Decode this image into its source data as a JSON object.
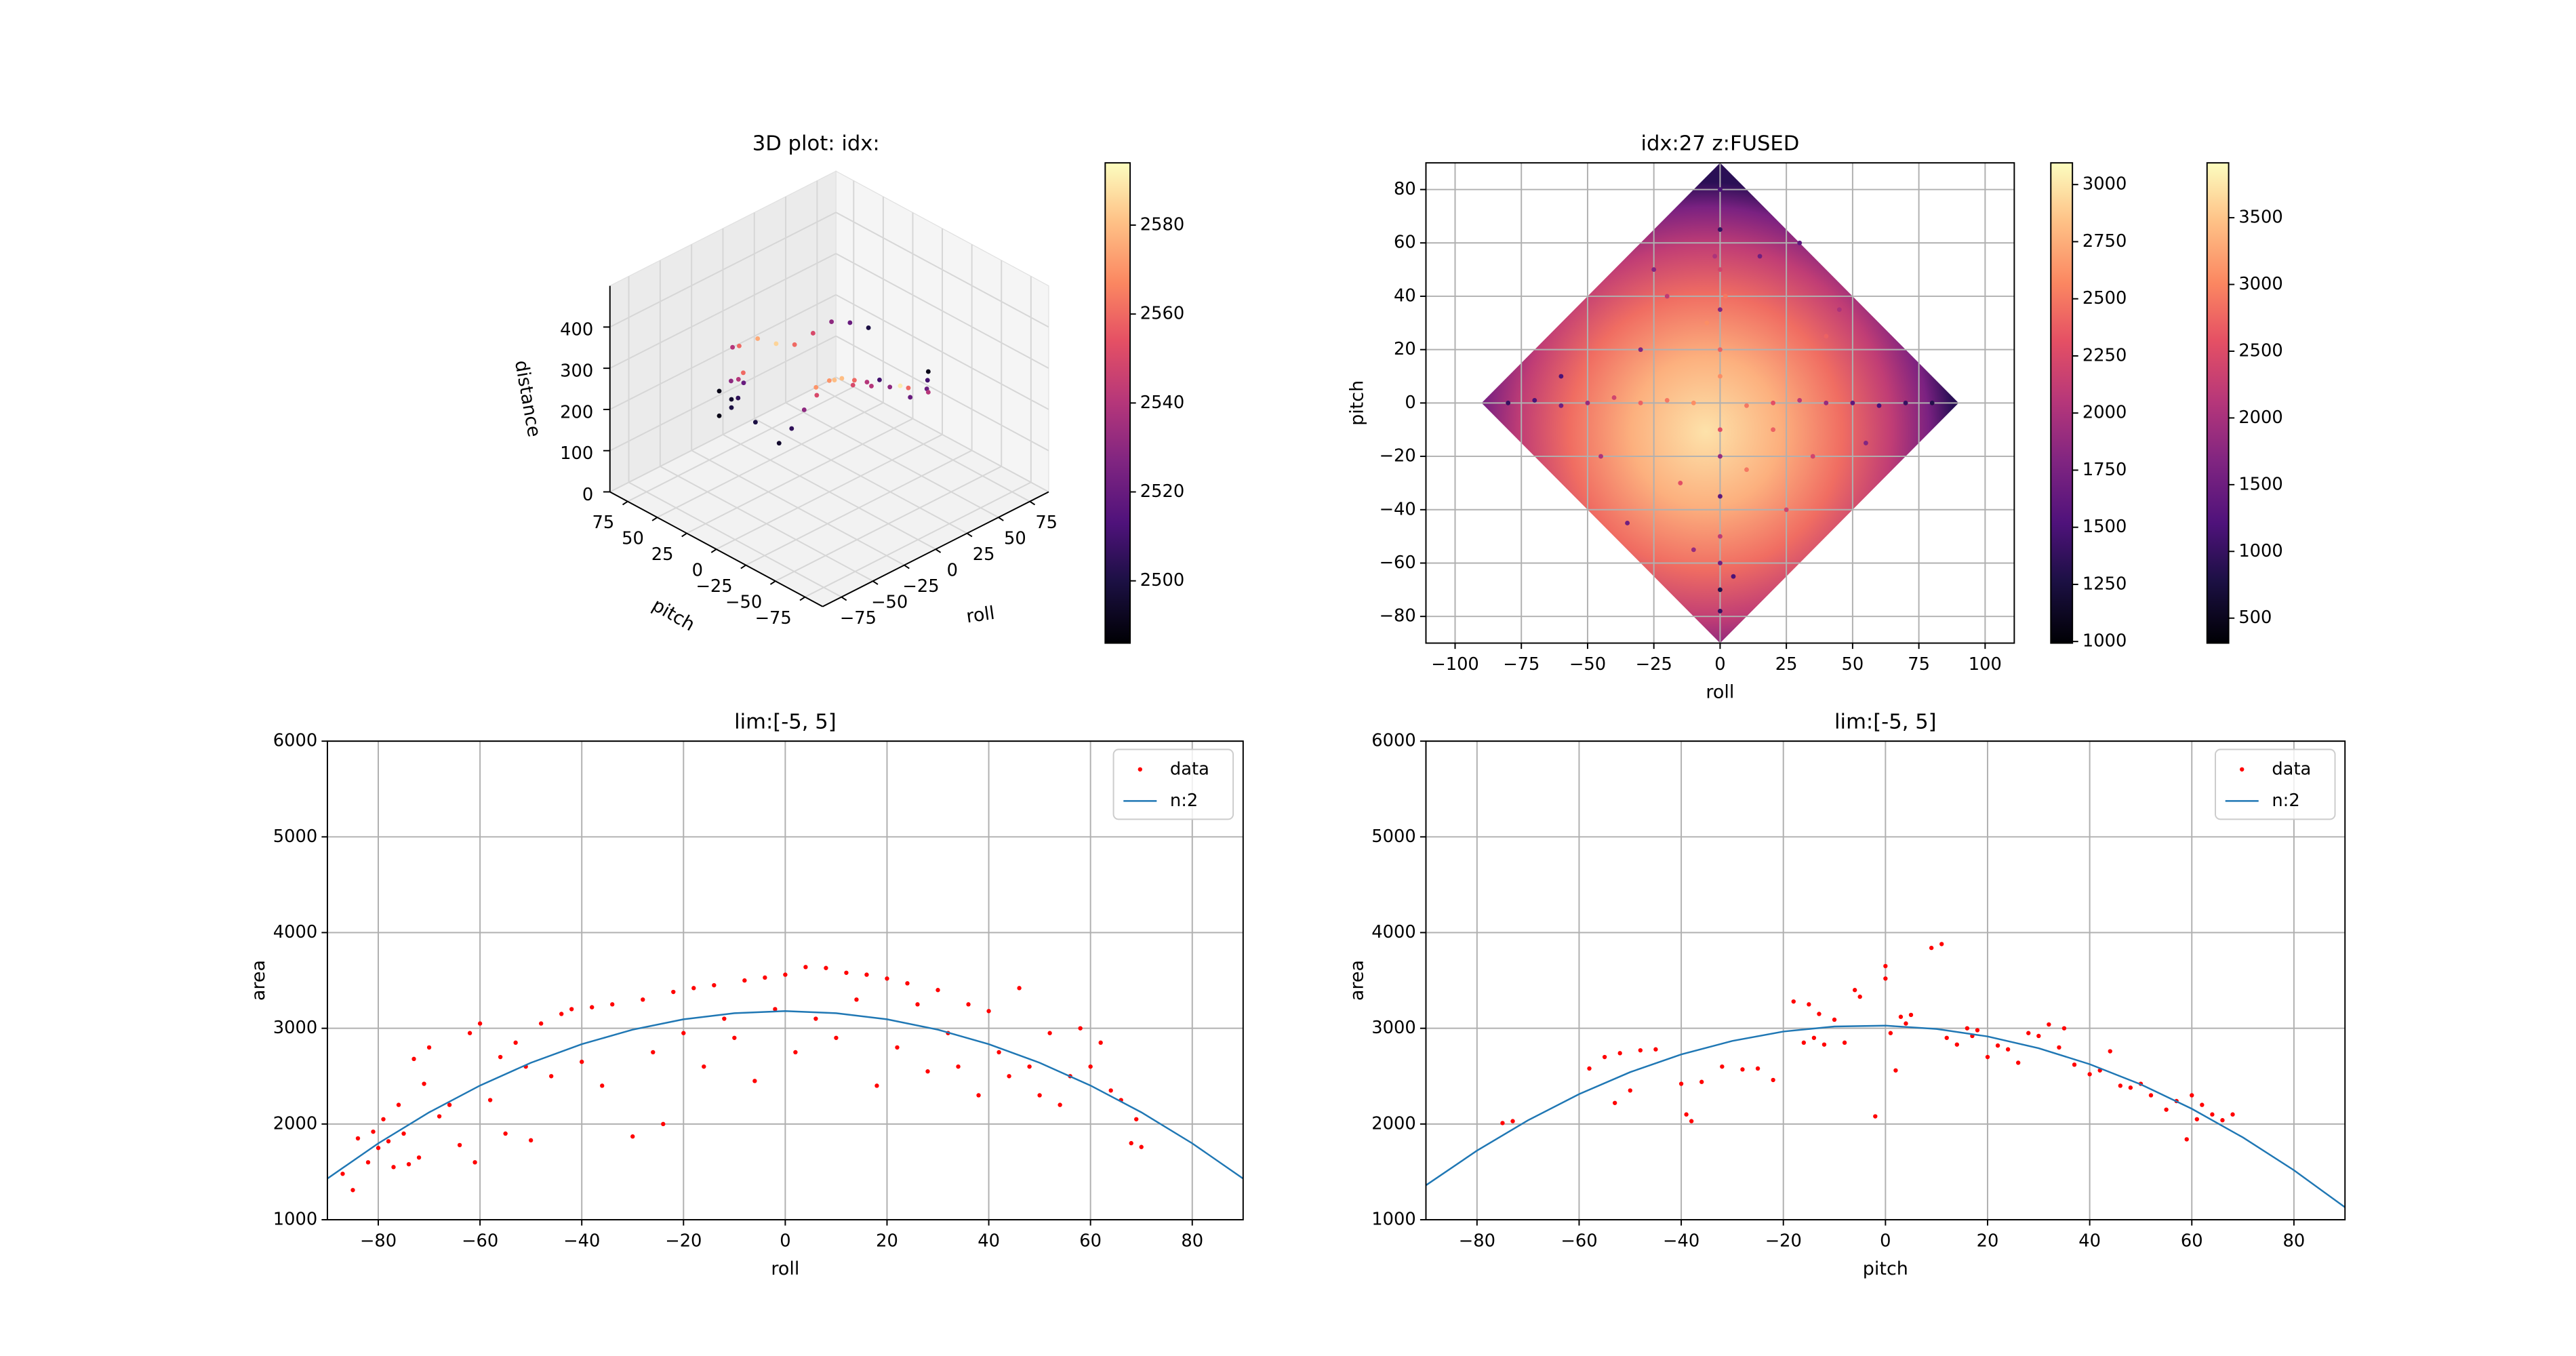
{
  "chart_data": [
    {
      "type": "scatter3d",
      "title": "3D plot: idx:",
      "xlabel": "roll",
      "ylabel": "pitch",
      "zlabel": "distance",
      "xlim": [
        -90,
        90
      ],
      "ylim": [
        -90,
        90
      ],
      "zlim": [
        0,
        500
      ],
      "xticks": [
        {
          "value": -75,
          "label": "−75"
        },
        {
          "value": -50,
          "label": "−50"
        },
        {
          "value": -25,
          "label": "−25"
        },
        0,
        25,
        50,
        75
      ],
      "yticks": [
        {
          "value": -75,
          "label": "−75"
        },
        {
          "value": -50,
          "label": "−50"
        },
        {
          "value": -25,
          "label": "−25"
        },
        0,
        25,
        50,
        75
      ],
      "zticks": [
        0,
        100,
        200,
        300,
        400
      ],
      "grid": true,
      "cmap": "magma",
      "x": [
        -50,
        -45,
        -40,
        -35,
        -30,
        -50,
        -45,
        -40,
        -20,
        -10,
        0,
        10,
        20,
        30,
        40,
        50,
        60,
        -30,
        -20,
        -10,
        0,
        10,
        20,
        30,
        40,
        50,
        -40,
        -30,
        -20,
        -10,
        0,
        10,
        20,
        30,
        40,
        -50,
        -45,
        60,
        55,
        0
      ],
      "y": [
        40,
        35,
        30,
        40,
        45,
        30,
        25,
        20,
        -10,
        -15,
        -20,
        -25,
        -30,
        -35,
        -40,
        -30,
        -20,
        50,
        55,
        50,
        45,
        40,
        35,
        30,
        25,
        20,
        0,
        0,
        0,
        0,
        0,
        0,
        0,
        0,
        0,
        40,
        35,
        -20,
        -10,
        -60
      ],
      "z": [
        260,
        240,
        280,
        220,
        250,
        300,
        320,
        200,
        300,
        310,
        290,
        280,
        270,
        260,
        250,
        240,
        230,
        320,
        300,
        310,
        290,
        280,
        300,
        320,
        310,
        290,
        180,
        200,
        230,
        250,
        270,
        260,
        240,
        220,
        210,
        200,
        220,
        180,
        160,
        350
      ],
      "c": [
        2490,
        2495,
        2520,
        2505,
        2540,
        2530,
        2560,
        2500,
        2570,
        2580,
        2550,
        2540,
        2530,
        2560,
        2520,
        2510,
        2490,
        2540,
        2560,
        2575,
        2585,
        2560,
        2550,
        2530,
        2520,
        2500,
        2495,
        2505,
        2530,
        2550,
        2570,
        2580,
        2560,
        2540,
        2510,
        2490,
        2500,
        2540,
        2520,
        2590
      ],
      "colorbar": {
        "clim": [
          2486,
          2594
        ],
        "ticks": [
          2500,
          2520,
          2540,
          2560,
          2580
        ]
      }
    },
    {
      "type": "heatmap",
      "title": "idx:27 z:FUSED",
      "xlabel": "roll",
      "ylabel": "pitch",
      "xlim": [
        -111,
        111
      ],
      "ylim": [
        -90,
        90
      ],
      "xticks": [
        {
          "value": -100,
          "label": "−100"
        },
        {
          "value": -75,
          "label": "−75"
        },
        {
          "value": -50,
          "label": "−50"
        },
        {
          "value": -25,
          "label": "−25"
        },
        0,
        25,
        50,
        75,
        100
      ],
      "yticks": [
        {
          "value": -80,
          "label": "−80"
        },
        {
          "value": -60,
          "label": "−60"
        },
        {
          "value": -40,
          "label": "−40"
        },
        {
          "value": -20,
          "label": "−20"
        },
        0,
        20,
        40,
        60,
        80
      ],
      "grid": true,
      "cmap": "magma",
      "x": [
        0,
        0,
        0,
        0,
        0,
        0,
        0,
        0,
        0,
        0,
        0,
        0,
        0,
        -2,
        2,
        -80,
        -70,
        -60,
        -50,
        -40,
        -30,
        -20,
        -10,
        10,
        20,
        30,
        40,
        50,
        60,
        70,
        80,
        -20,
        -15,
        -30,
        -45,
        25,
        40,
        15,
        -10,
        10,
        -60,
        55,
        30,
        -35,
        5,
        -5,
        45,
        -25,
        20,
        35
      ],
      "y": [
        80,
        65,
        50,
        35,
        20,
        10,
        -10,
        -20,
        -35,
        -50,
        -60,
        -70,
        -78,
        55,
        40,
        0,
        1,
        -1,
        0,
        2,
        0,
        1,
        0,
        -1,
        0,
        1,
        0,
        0,
        -1,
        0,
        0,
        40,
        -30,
        20,
        -20,
        -40,
        25,
        55,
        -55,
        -25,
        10,
        -15,
        60,
        -45,
        -65,
        30,
        35,
        50,
        -10,
        -20
      ],
      "c": [
        1500,
        1400,
        2200,
        1800,
        2400,
        2600,
        2300,
        1900,
        1600,
        2100,
        1700,
        1300,
        1400,
        2000,
        2500,
        1400,
        1500,
        1700,
        1900,
        2200,
        2400,
        2500,
        2600,
        2500,
        2300,
        2100,
        1900,
        1600,
        1500,
        1400,
        1300,
        2100,
        2300,
        1800,
        2000,
        2200,
        2400,
        1700,
        1900,
        2500,
        1500,
        1800,
        1600,
        1700,
        1500,
        2600,
        2000,
        1800,
        2400,
        2200
      ],
      "colorbars": [
        {
          "clim": [
            993,
            3095
          ],
          "ticks": [
            1000,
            1250,
            1500,
            1750,
            2000,
            2250,
            2500,
            2750,
            3000
          ]
        },
        {
          "clim": [
            313,
            3911
          ],
          "ticks": [
            500,
            1000,
            1500,
            2000,
            2500,
            3000,
            3500
          ]
        }
      ]
    },
    {
      "type": "scatter",
      "title": "lim:[-5, 5]",
      "xlabel": "roll",
      "ylabel": "area",
      "xlim": [
        -90,
        90
      ],
      "ylim": [
        1000,
        6000
      ],
      "xticks": [
        {
          "value": -80,
          "label": "−80"
        },
        {
          "value": -60,
          "label": "−60"
        },
        {
          "value": -40,
          "label": "−40"
        },
        {
          "value": -20,
          "label": "−20"
        },
        0,
        20,
        40,
        60,
        80
      ],
      "yticks": [
        1000,
        2000,
        3000,
        4000,
        5000,
        6000
      ],
      "grid": true,
      "legend": "upper right",
      "series": [
        {
          "name": "data",
          "color": "#ff0000",
          "kind": "points",
          "x": [
            -87,
            -85,
            -84,
            -82,
            -81,
            -80,
            -79,
            -78,
            -77,
            -76,
            -75,
            -74,
            -73,
            -72,
            -71,
            -70,
            -68,
            -66,
            -64,
            -62,
            -61,
            -60,
            -58,
            -56,
            -55,
            -53,
            -51,
            -50,
            -48,
            -46,
            -44,
            -42,
            -40,
            -38,
            -36,
            -34,
            -30,
            -28,
            -26,
            -24,
            -22,
            -20,
            -18,
            -16,
            -14,
            -12,
            -10,
            -8,
            -6,
            -4,
            -2,
            0,
            2,
            4,
            6,
            8,
            10,
            12,
            14,
            16,
            18,
            20,
            22,
            24,
            26,
            28,
            30,
            32,
            34,
            36,
            38,
            40,
            42,
            44,
            46,
            48,
            50,
            52,
            54,
            56,
            58,
            60,
            62,
            64,
            66,
            68,
            69,
            70
          ],
          "values": [
            1480,
            1310,
            1850,
            1600,
            1920,
            1750,
            2050,
            1820,
            1550,
            2200,
            1900,
            1580,
            2680,
            1650,
            2420,
            2800,
            2080,
            2200,
            1780,
            2950,
            1600,
            3050,
            2250,
            2700,
            1900,
            2850,
            2600,
            1830,
            3050,
            2500,
            3150,
            3200,
            2650,
            3220,
            2400,
            3250,
            1870,
            3300,
            2750,
            2000,
            3380,
            2950,
            3420,
            2600,
            3450,
            3100,
            2900,
            3500,
            2450,
            3530,
            3200,
            3560,
            2750,
            3640,
            3100,
            3630,
            2900,
            3580,
            3300,
            3560,
            2400,
            3520,
            2800,
            3470,
            3250,
            2550,
            3400,
            2950,
            2600,
            3250,
            2300,
            3180,
            2750,
            2500,
            3420,
            2600,
            2300,
            2950,
            2200,
            2500,
            3000,
            2600,
            2850,
            2350,
            2250,
            1800,
            2050,
            1760
          ]
        },
        {
          "name": "n:2",
          "color": "#1f77b4",
          "kind": "line",
          "x": [
            -90,
            -80,
            -70,
            -60,
            -50,
            -40,
            -30,
            -20,
            -10,
            0,
            10,
            20,
            30,
            40,
            50,
            60,
            70,
            80,
            90
          ],
          "values": [
            1430,
            1798,
            2122,
            2402,
            2640,
            2834,
            2986,
            3094,
            3158,
            3180,
            3158,
            3094,
            2986,
            2834,
            2640,
            2402,
            2122,
            1798,
            1430
          ]
        }
      ]
    },
    {
      "type": "scatter",
      "title": "lim:[-5, 5]",
      "xlabel": "pitch",
      "ylabel": "area",
      "xlim": [
        -90,
        90
      ],
      "ylim": [
        1000,
        6000
      ],
      "xticks": [
        {
          "value": -80,
          "label": "−80"
        },
        {
          "value": -60,
          "label": "−60"
        },
        {
          "value": -40,
          "label": "−40"
        },
        {
          "value": -20,
          "label": "−20"
        },
        0,
        20,
        40,
        60,
        80
      ],
      "yticks": [
        1000,
        2000,
        3000,
        4000,
        5000,
        6000
      ],
      "grid": true,
      "legend": "upper right",
      "series": [
        {
          "name": "data",
          "color": "#ff0000",
          "kind": "points",
          "x": [
            -75,
            -73,
            -58,
            -55,
            -53,
            -52,
            -50,
            -48,
            -45,
            -40,
            -39,
            -38,
            -36,
            -32,
            -28,
            -25,
            -22,
            -18,
            -16,
            -15,
            -14,
            -13,
            -12,
            -10,
            -8,
            -6,
            -5,
            -2,
            0,
            0,
            1,
            2,
            3,
            4,
            5,
            9,
            11,
            12,
            14,
            16,
            17,
            18,
            20,
            22,
            24,
            26,
            28,
            30,
            32,
            34,
            35,
            37,
            40,
            42,
            44,
            46,
            48,
            50,
            52,
            55,
            57,
            59,
            60,
            61,
            62,
            64,
            66,
            68
          ],
          "values": [
            2010,
            2030,
            2580,
            2700,
            2220,
            2740,
            2350,
            2770,
            2780,
            2420,
            2100,
            2030,
            2440,
            2600,
            2570,
            2580,
            2460,
            3280,
            2850,
            3250,
            2900,
            3150,
            2830,
            3090,
            2850,
            3400,
            3330,
            2080,
            3650,
            3520,
            2950,
            2560,
            3120,
            3050,
            3140,
            3840,
            3880,
            2900,
            2830,
            3000,
            2920,
            2980,
            2700,
            2820,
            2780,
            2640,
            2950,
            2920,
            3040,
            2800,
            3000,
            2620,
            2520,
            2560,
            2760,
            2400,
            2380,
            2420,
            2300,
            2150,
            2240,
            1840,
            2300,
            2050,
            2200,
            2100,
            2040,
            2100
          ]
        },
        {
          "name": "n:2",
          "color": "#1f77b4",
          "kind": "line",
          "x": [
            -90,
            -80,
            -70,
            -60,
            -50,
            -40,
            -30,
            -20,
            -10,
            0,
            10,
            20,
            30,
            40,
            50,
            60,
            70,
            80,
            90
          ],
          "values": [
            1360,
            1722,
            2039,
            2312,
            2542,
            2727,
            2868,
            2966,
            3019,
            3028,
            2993,
            2915,
            2792,
            2625,
            2414,
            2159,
            1860,
            1517,
            1130
          ]
        }
      ]
    }
  ]
}
